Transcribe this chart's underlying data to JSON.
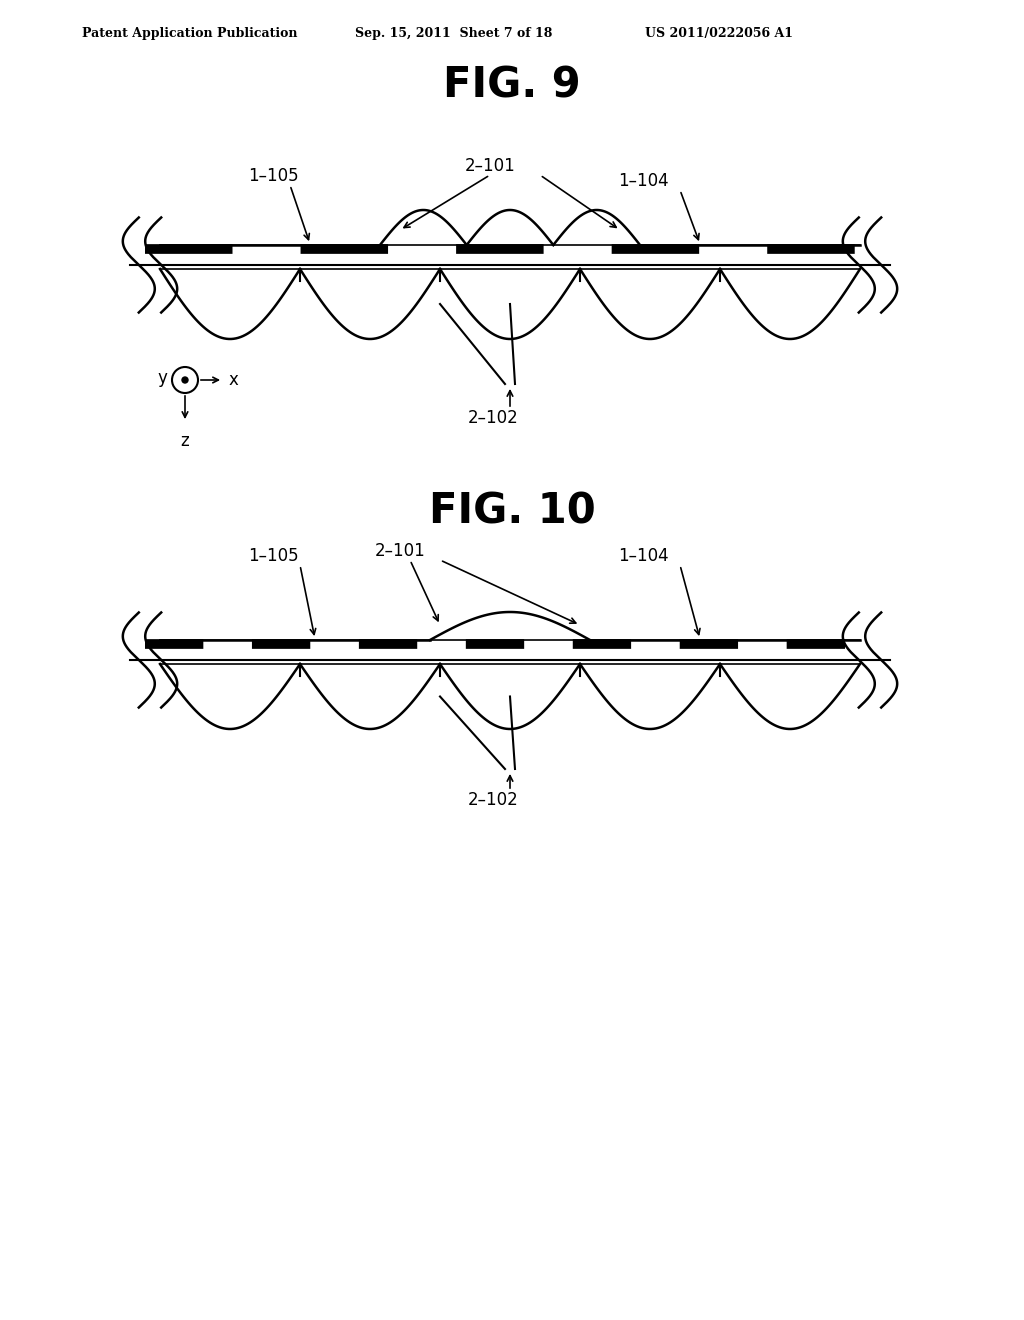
{
  "header_left": "Patent Application Publication",
  "header_mid": "Sep. 15, 2011  Sheet 7 of 18",
  "header_right": "US 2011/0222056 A1",
  "fig9_title": "FIG. 9",
  "fig10_title": "FIG. 10",
  "label_2_101": "2–101",
  "label_1_105": "1–105",
  "label_1_104": "1–104",
  "label_2_102": "2–102",
  "bg_color": "#ffffff",
  "line_color": "#000000"
}
